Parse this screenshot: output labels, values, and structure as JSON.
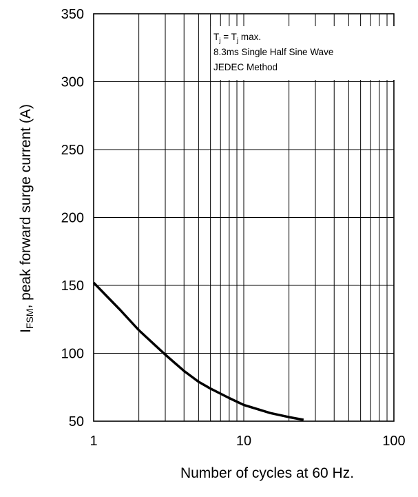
{
  "chart_data": {
    "type": "line",
    "x_scale": "log",
    "xlim": [
      1,
      100
    ],
    "ylim": [
      50,
      350
    ],
    "x_ticks": [
      1,
      10,
      100
    ],
    "x_tick_labels": [
      "1",
      "10",
      "100"
    ],
    "y_ticks": [
      50,
      100,
      150,
      200,
      250,
      300,
      350
    ],
    "y_tick_labels": [
      "50",
      "100",
      "150",
      "200",
      "250",
      "300",
      "350"
    ],
    "xlabel": "Number of cycles at 60 Hz.",
    "ylabel": {
      "main": "I",
      "subscript": "FSM",
      "rest": ", peak forward surge current (A)"
    },
    "grid": true,
    "annotation": {
      "line1": {
        "a": "T",
        "a_sub": "j",
        "eq": " = T",
        "b_sub": "j",
        "tail": " max."
      },
      "line2": "8.3ms Single Half Sine Wave",
      "line3": "JEDEC Method"
    },
    "series": [
      {
        "color": "#000000",
        "x": [
          1,
          1.5,
          2,
          3,
          4,
          5,
          6,
          8,
          10,
          15,
          20,
          25
        ],
        "y": [
          152,
          132,
          117,
          99,
          87,
          79,
          74,
          67,
          62,
          56,
          53,
          51
        ]
      }
    ]
  }
}
